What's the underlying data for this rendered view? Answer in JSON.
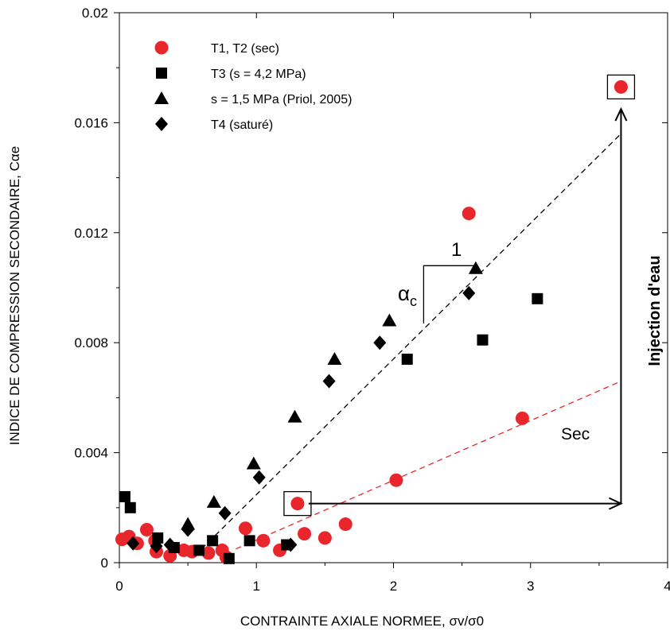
{
  "chart_data": {
    "type": "scatter",
    "xlabel": "CONTRAINTE AXIALE NORMEE, σv/σ0",
    "ylabel": "INDICE DE COMPRESSION SECONDAIRE, Cαe",
    "xlim": [
      0,
      4
    ],
    "ylim": [
      0,
      0.02
    ],
    "x_ticks": [
      "0",
      "1",
      "2",
      "3",
      "4"
    ],
    "y_ticks": [
      "0",
      "0.004",
      "0.008",
      "0.012",
      "0.016",
      "0.02"
    ],
    "grid": false,
    "legend_position": "top-left",
    "colors": {
      "red": "#e8262b",
      "black": "#000000"
    },
    "series": [
      {
        "name": "T1, T2 (sec)",
        "marker": "circle",
        "color": "#e8262b",
        "points": [
          [
            0.02,
            0.00085
          ],
          [
            0.07,
            0.00095
          ],
          [
            0.13,
            0.0007
          ],
          [
            0.2,
            0.0012
          ],
          [
            0.26,
            0.0008
          ],
          [
            0.27,
            0.0004
          ],
          [
            0.37,
            0.00025
          ],
          [
            0.47,
            0.00045
          ],
          [
            0.53,
            0.0004
          ],
          [
            0.65,
            0.00035
          ],
          [
            0.75,
            0.00045
          ],
          [
            0.78,
            0.0002
          ],
          [
            0.92,
            0.00125
          ],
          [
            1.05,
            0.0008
          ],
          [
            1.17,
            0.00045
          ],
          [
            1.3,
            0.00215
          ],
          [
            1.35,
            0.00105
          ],
          [
            1.5,
            0.0009
          ],
          [
            1.65,
            0.0014
          ],
          [
            2.02,
            0.003
          ],
          [
            2.55,
            0.0127
          ],
          [
            2.94,
            0.00525
          ],
          [
            3.66,
            0.0173
          ]
        ]
      },
      {
        "name": "T3 (s = 4,2 MPa)",
        "marker": "square",
        "color": "#000000",
        "points": [
          [
            0.04,
            0.0024
          ],
          [
            0.08,
            0.002
          ],
          [
            0.28,
            0.0009
          ],
          [
            0.4,
            0.00055
          ],
          [
            0.58,
            0.00045
          ],
          [
            0.68,
            0.0008
          ],
          [
            0.8,
            0.00015
          ],
          [
            0.95,
            0.0008
          ],
          [
            1.22,
            0.00065
          ],
          [
            2.1,
            0.0074
          ],
          [
            2.65,
            0.0081
          ],
          [
            3.05,
            0.0096
          ]
        ]
      },
      {
        "name": "s = 1,5 MPa (Priol, 2005)",
        "marker": "triangle",
        "color": "#000000",
        "points": [
          [
            0.5,
            0.0014
          ],
          [
            0.69,
            0.0022
          ],
          [
            0.98,
            0.0036
          ],
          [
            1.28,
            0.0053
          ],
          [
            1.57,
            0.0074
          ],
          [
            1.97,
            0.0088
          ],
          [
            2.6,
            0.0107
          ]
        ]
      },
      {
        "name": "T4 (saturé)",
        "marker": "diamond",
        "color": "#000000",
        "points": [
          [
            0.1,
            0.0007
          ],
          [
            0.27,
            0.0006
          ],
          [
            0.37,
            0.00065
          ],
          [
            0.5,
            0.0012
          ],
          [
            0.77,
            0.0018
          ],
          [
            1.02,
            0.0031
          ],
          [
            1.25,
            0.00065
          ],
          [
            1.53,
            0.0066
          ],
          [
            1.9,
            0.008
          ],
          [
            2.55,
            0.0098
          ]
        ]
      }
    ],
    "trend_lines": [
      {
        "color": "#000000",
        "dash": true,
        "points": [
          [
            0.6,
            0.0005
          ],
          [
            3.66,
            0.0156
          ]
        ]
      },
      {
        "color": "#e8262b",
        "dash": true,
        "points": [
          [
            0.85,
            0.0005
          ],
          [
            3.66,
            0.0066
          ]
        ]
      }
    ],
    "highlight_boxes": [
      [
        1.3,
        0.00215
      ],
      [
        3.66,
        0.0173
      ]
    ],
    "arrows": [
      {
        "from": [
          1.38,
          0.00215
        ],
        "to": [
          3.66,
          0.00215
        ]
      },
      {
        "from": [
          3.66,
          0.00215
        ],
        "to": [
          3.66,
          0.0165
        ]
      }
    ],
    "slope_marker": {
      "corner": [
        2.22,
        0.0108
      ],
      "run_end": [
        2.6,
        0.0108
      ],
      "rise_end": [
        2.22,
        0.0087
      ]
    },
    "annotations": {
      "slope_run": "1",
      "slope_alpha": "α",
      "slope_alpha_sub": "c",
      "sec_label": "Sec",
      "injection_label": "Injection d'eau"
    }
  }
}
